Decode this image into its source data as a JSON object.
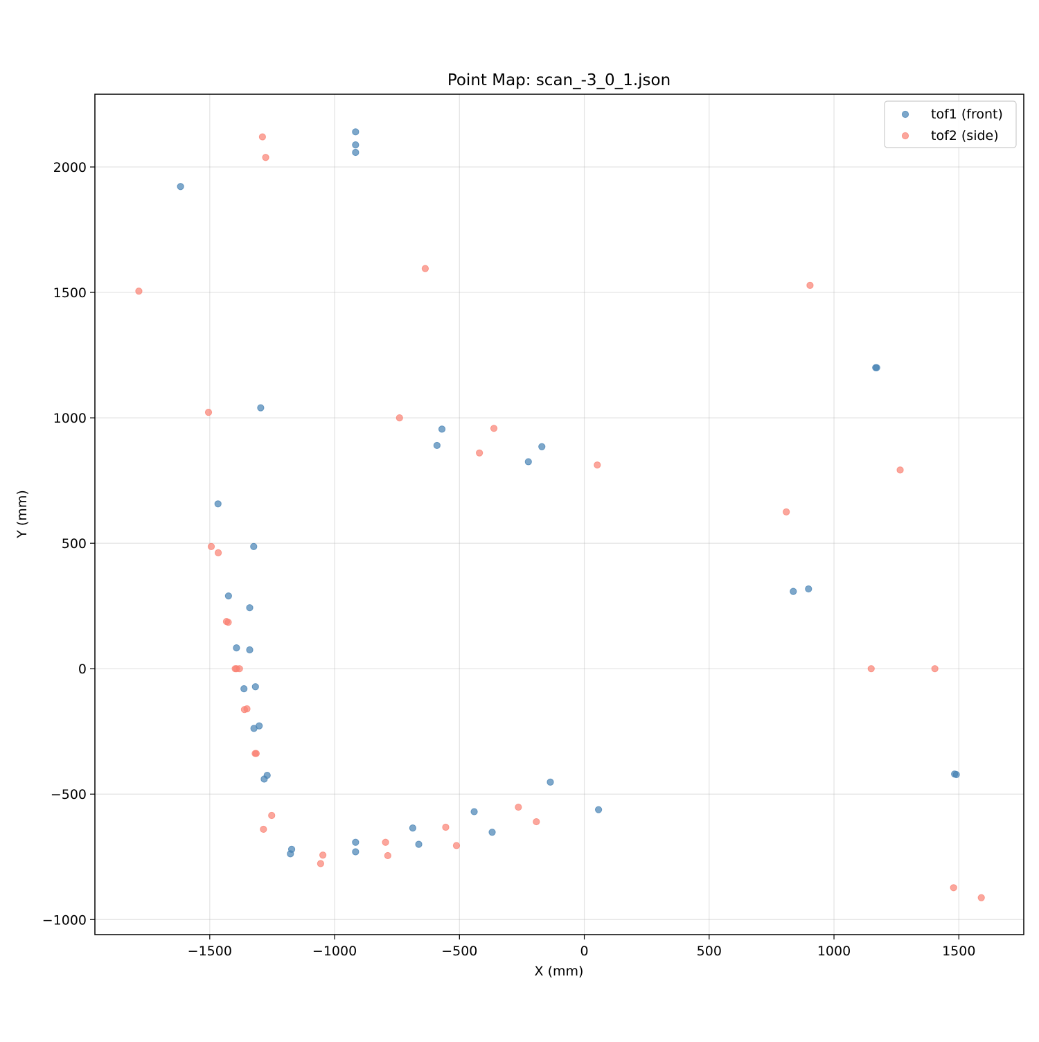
{
  "chart_data": {
    "type": "scatter",
    "title": "Point Map: scan_-3_0_1.json",
    "xlabel": "X (mm)",
    "ylabel": "Y (mm)",
    "xlim": [
      -1960,
      1760
    ],
    "ylim": [
      -1060,
      2290
    ],
    "xticks": [
      -1500,
      -1000,
      -500,
      0,
      500,
      1000,
      1500
    ],
    "yticks": [
      -1000,
      -500,
      0,
      500,
      1000,
      1500,
      2000
    ],
    "xtick_labels": [
      "−1500",
      "−1000",
      "−500",
      "0",
      "500",
      "1000",
      "1500"
    ],
    "ytick_labels": [
      "−1000",
      "−500",
      "0",
      "500",
      "1000",
      "1500",
      "2000"
    ],
    "grid": true,
    "legend_position": "top-right",
    "series": [
      {
        "name": "tof1 (front)",
        "color": "#4682b4",
        "points": [
          [
            -916,
            2140
          ],
          [
            -916,
            2088
          ],
          [
            -916,
            2058
          ],
          [
            -1617,
            1922
          ],
          [
            -1296,
            1040
          ],
          [
            -570,
            955
          ],
          [
            -590,
            890
          ],
          [
            -170,
            885
          ],
          [
            -224,
            825
          ],
          [
            -1467,
            657
          ],
          [
            -1324,
            487
          ],
          [
            -1425,
            290
          ],
          [
            -1340,
            243
          ],
          [
            -1393,
            83
          ],
          [
            -1340,
            75
          ],
          [
            -1317,
            -72
          ],
          [
            -1363,
            -80
          ],
          [
            -1302,
            -228
          ],
          [
            -1323,
            -238
          ],
          [
            -1270,
            -425
          ],
          [
            -1282,
            -440
          ],
          [
            -136,
            -452
          ],
          [
            57,
            -562
          ],
          [
            -441,
            -570
          ],
          [
            -687,
            -635
          ],
          [
            -369,
            -652
          ],
          [
            -663,
            -700
          ],
          [
            -916,
            -692
          ],
          [
            -916,
            -730
          ],
          [
            -1172,
            -720
          ],
          [
            -1177,
            -738
          ],
          [
            1167,
            1200
          ],
          [
            1171,
            1200
          ],
          [
            898,
            318
          ],
          [
            837,
            308
          ],
          [
            1483,
            -420
          ],
          [
            1490,
            -422
          ]
        ]
      },
      {
        "name": "tof2 (side)",
        "color": "#fa8072",
        "points": [
          [
            -1289,
            2120
          ],
          [
            -1276,
            2038
          ],
          [
            -1784,
            1505
          ],
          [
            -637,
            1595
          ],
          [
            -740,
            1000
          ],
          [
            -362,
            958
          ],
          [
            -420,
            860
          ],
          [
            52,
            812
          ],
          [
            -1505,
            1022
          ],
          [
            -1494,
            487
          ],
          [
            -1466,
            462
          ],
          [
            -1433,
            188
          ],
          [
            -1426,
            185
          ],
          [
            -1398,
            0
          ],
          [
            -1393,
            0
          ],
          [
            -1381,
            0
          ],
          [
            -1361,
            -163
          ],
          [
            -1351,
            -160
          ],
          [
            -1318,
            -338
          ],
          [
            -1314,
            -338
          ],
          [
            -1252,
            -585
          ],
          [
            -1285,
            -640
          ],
          [
            -264,
            -552
          ],
          [
            -192,
            -610
          ],
          [
            -555,
            -632
          ],
          [
            -512,
            -705
          ],
          [
            -796,
            -692
          ],
          [
            -787,
            -745
          ],
          [
            -1047,
            -743
          ],
          [
            -1056,
            -777
          ],
          [
            904,
            1528
          ],
          [
            1265,
            792
          ],
          [
            809,
            625
          ],
          [
            1149,
            0
          ],
          [
            1404,
            0
          ],
          [
            1479,
            -873
          ],
          [
            1590,
            -913
          ]
        ]
      }
    ]
  }
}
